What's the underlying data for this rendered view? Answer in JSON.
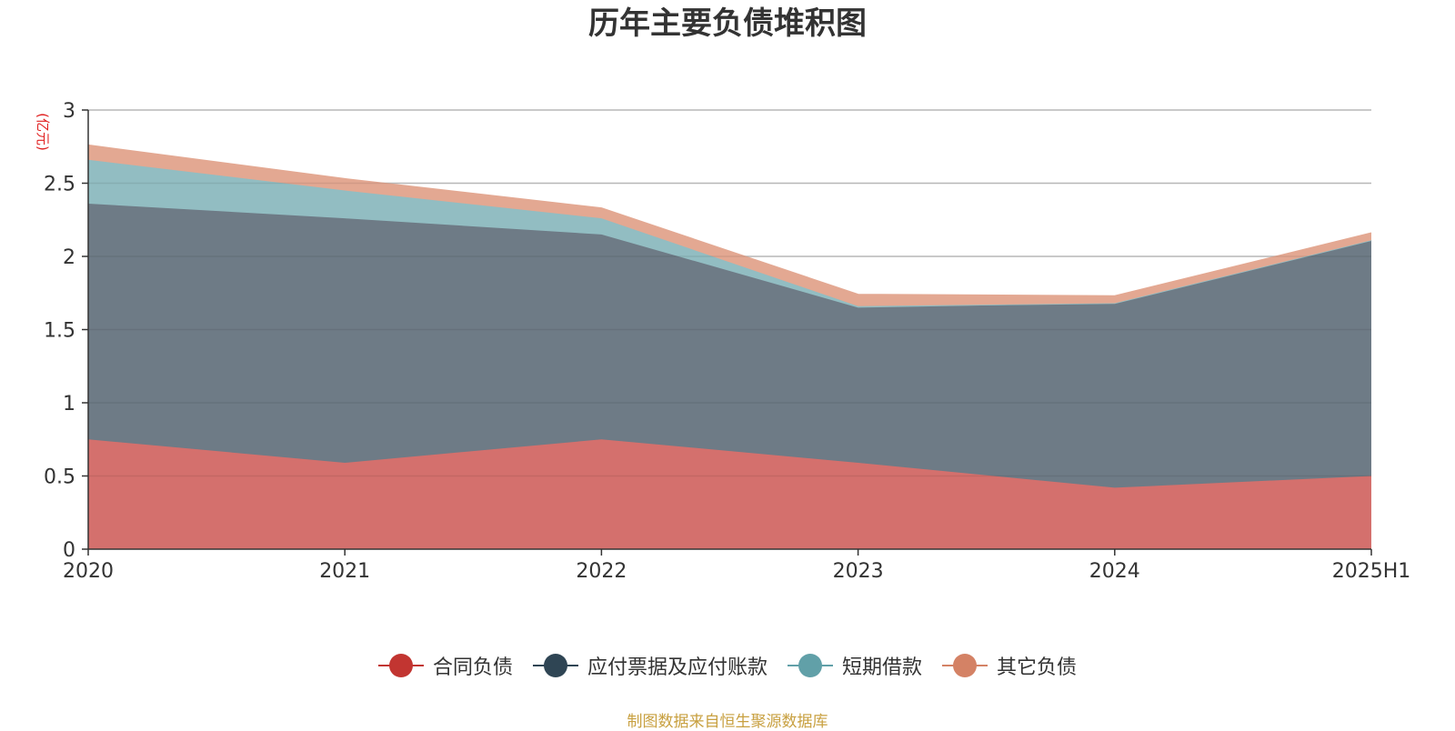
{
  "chart_data": {
    "type": "area",
    "stacked": true,
    "title": "历年主要负债堆积图",
    "unit_label": "(亿元)",
    "categories": [
      "2020",
      "2021",
      "2022",
      "2023",
      "2024",
      "2025H1"
    ],
    "ylim": [
      0,
      3
    ],
    "yticks": [
      "0",
      "0.5",
      "1",
      "1.5",
      "2",
      "2.5",
      "3"
    ],
    "ytick_values": [
      0,
      0.5,
      1,
      1.5,
      2,
      2.5,
      3
    ],
    "grid": true,
    "legend_position": "bottom",
    "series": [
      {
        "name": "合同负债",
        "color": "#c23531",
        "fill": "#d4706d",
        "values": [
          0.75,
          0.59,
          0.75,
          0.59,
          0.42,
          0.5
        ]
      },
      {
        "name": "应付票据及应付账款",
        "color": "#2f4554",
        "fill": "#6e7b86",
        "values": [
          1.61,
          1.67,
          1.4,
          1.06,
          1.26,
          1.61
        ]
      },
      {
        "name": "短期借款",
        "color": "#61a0a8",
        "fill": "#92bdc2",
        "values": [
          0.3,
          0.19,
          0.11,
          0.01,
          0.0,
          0.0
        ]
      },
      {
        "name": "其它负债",
        "color": "#d48265",
        "fill": "#e3a892",
        "values": [
          0.1,
          0.08,
          0.07,
          0.08,
          0.05,
          0.05
        ]
      }
    ]
  },
  "source": "制图数据来自恒生聚源数据库"
}
